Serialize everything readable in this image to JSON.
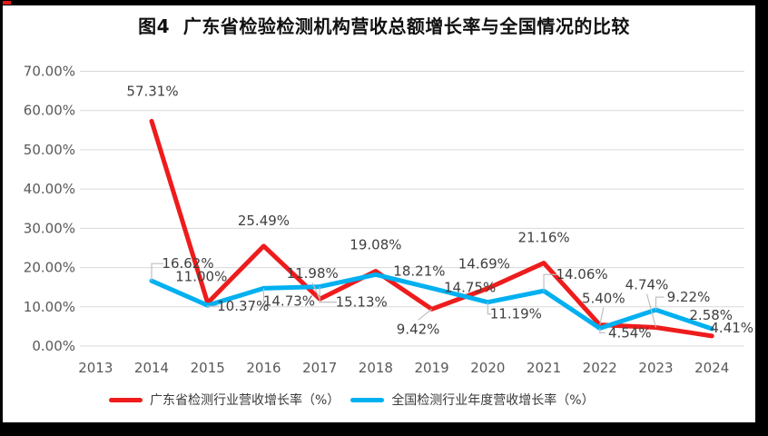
{
  "title": "图4  广东省检验检测机构营收总额增长率与全国情况的比较",
  "chart_data": {
    "type": "line",
    "title": "图4  广东省检验检测机构营收总额增长率与全国情况的比较",
    "categories": [
      "2013",
      "2014",
      "2015",
      "2016",
      "2017",
      "2018",
      "2019",
      "2020",
      "2021",
      "2022",
      "2023",
      "2024"
    ],
    "y_ticks": [
      "0.00%",
      "10.00%",
      "20.00%",
      "30.00%",
      "40.00%",
      "50.00%",
      "60.00%",
      "70.00%"
    ],
    "ylim": [
      0,
      70
    ],
    "grid": true,
    "legend_position": "bottom",
    "series": [
      {
        "name": "广东省检测行业营收增长率（%）",
        "color": "#ee1c1c",
        "values": [
          null,
          57.31,
          11.0,
          25.49,
          11.98,
          19.08,
          9.42,
          14.69,
          21.16,
          5.4,
          4.74,
          2.58
        ],
        "label_placement": [
          null,
          {
            "dx": 1,
            "dy": -33,
            "leader": false
          },
          {
            "dx": -7,
            "dy": -29,
            "leader": false
          },
          {
            "dx": 0,
            "dy": -28,
            "leader": false
          },
          {
            "dx": -8,
            "dy": -28,
            "leader": true
          },
          {
            "dx": 0,
            "dy": -29,
            "leader": false
          },
          {
            "dx": -15,
            "dy": 22,
            "leader": true
          },
          {
            "dx": -4,
            "dy": -27,
            "leader": false
          },
          {
            "dx": 0,
            "dy": -28,
            "leader": false
          },
          {
            "dx": 4,
            "dy": -29,
            "leader": true
          },
          {
            "dx": -10,
            "dy": -47,
            "leader": true
          },
          {
            "dx": -1,
            "dy": -23,
            "leader": false
          }
        ]
      },
      {
        "name": "全国检测行业年度营收增长率（%）",
        "color": "#00b0f0",
        "values": [
          null,
          16.62,
          10.37,
          14.73,
          15.13,
          18.21,
          14.75,
          11.19,
          14.06,
          4.54,
          9.22,
          4.41
        ],
        "label_placement": [
          null,
          {
            "dx": 40,
            "dy": -19,
            "leader": true
          },
          {
            "dx": 39,
            "dy": 1,
            "leader": true
          },
          {
            "dx": 28,
            "dy": 14,
            "leader": true
          },
          {
            "dx": 46,
            "dy": 17,
            "leader": true
          },
          {
            "dx": 48,
            "dy": -4,
            "leader": false
          },
          {
            "dx": 42,
            "dy": -1,
            "leader": false
          },
          {
            "dx": 31,
            "dy": 13,
            "leader": true
          },
          {
            "dx": 42,
            "dy": -18,
            "leader": true
          },
          {
            "dx": 33,
            "dy": 5,
            "leader": true
          },
          {
            "dx": 36,
            "dy": -14,
            "leader": true
          },
          {
            "dx": 22,
            "dy": -1,
            "leader": false
          }
        ]
      }
    ]
  }
}
